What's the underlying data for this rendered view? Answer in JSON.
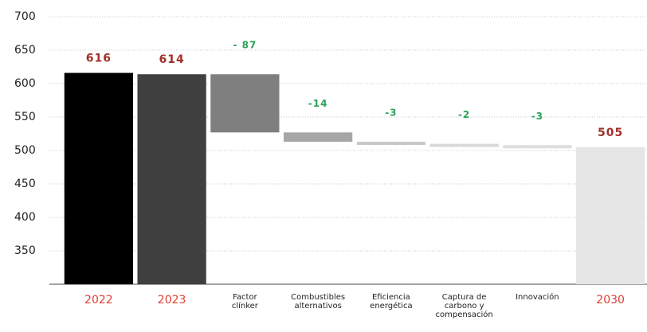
{
  "chart_data": {
    "type": "waterfall",
    "categories": [
      "2022",
      "2023",
      "Factor clínker",
      "Combustibles alternativos",
      "Eficiencia energética",
      "Captura de carbono y compensación",
      "Innovación",
      "2030"
    ],
    "measure": [
      "absolute",
      "absolute",
      "relative",
      "relative",
      "relative",
      "relative",
      "relative",
      "absolute"
    ],
    "values": [
      616,
      614,
      -87,
      -14,
      -3,
      -2,
      -3,
      505
    ],
    "value_labels": [
      "616",
      "614",
      "- 87",
      "-14",
      "-3",
      "-2",
      "-3",
      "505"
    ],
    "colors": [
      "#000000",
      "#404040",
      "#7f7f7f",
      "#a6a6a6",
      "#c8c8c8",
      "#d9d9d9",
      "#dedede",
      "#e6e6e6"
    ],
    "total_label_color": "#a0302a",
    "delta_label_color": "#2ca05a",
    "year_label_color": "#e03c31",
    "category_label_color": "#222222",
    "ylim": [
      300,
      700
    ],
    "yticks": [
      350,
      400,
      450,
      500,
      550,
      600,
      650,
      700
    ],
    "grid": true
  }
}
